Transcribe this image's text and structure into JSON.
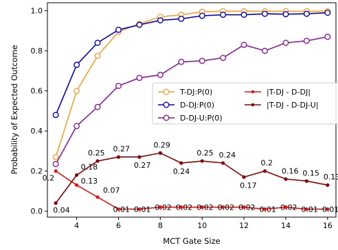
{
  "chart_data": {
    "type": "line",
    "title": "",
    "xlabel": "MCT Gate Size",
    "ylabel": "Probability of Expected Outcome",
    "xlim": [
      2.6,
      16.4
    ],
    "ylim": [
      -0.03,
      1.04
    ],
    "x_ticks": [
      4,
      6,
      8,
      10,
      12,
      14,
      16
    ],
    "x_tick_labels": [
      "4",
      "6",
      "8",
      "10",
      "12",
      "14",
      "16"
    ],
    "y_ticks": [
      0.0,
      0.2,
      0.4,
      0.6,
      0.8,
      1.0
    ],
    "y_tick_labels": [
      "0.0",
      "0.2",
      "0.4",
      "0.6",
      "0.8",
      "1.0"
    ],
    "grid": false,
    "legend_position": "center-right",
    "x": [
      3,
      4,
      5,
      6,
      7,
      8,
      9,
      10,
      11,
      12,
      13,
      14,
      15,
      16
    ],
    "series": [
      {
        "name": "T-DJ:P(0)",
        "color": "#ff9f2d",
        "marker": "open-circle",
        "values": [
          0.27,
          0.6,
          0.775,
          0.895,
          0.935,
          0.97,
          0.98,
          0.995,
          0.998,
          0.998,
          0.998,
          0.998,
          0.998,
          0.998
        ]
      },
      {
        "name": "D-DJ:P(0)",
        "color": "#0000cc",
        "marker": "open-circle",
        "values": [
          0.48,
          0.73,
          0.84,
          0.905,
          0.93,
          0.952,
          0.96,
          0.975,
          0.98,
          0.98,
          0.985,
          0.983,
          0.985,
          0.99
        ]
      },
      {
        "name": "D-DJ-U:P(0)",
        "color": "#8b1a9b",
        "marker": "open-circle",
        "values": [
          0.235,
          0.425,
          0.52,
          0.625,
          0.665,
          0.68,
          0.745,
          0.75,
          0.765,
          0.83,
          0.8,
          0.84,
          0.85,
          0.87
        ]
      },
      {
        "name": "|T-DJ - D-DJ|",
        "color": "#ee1111",
        "marker": "dot",
        "values": [
          0.2,
          0.13,
          0.07,
          0.01,
          0.01,
          0.02,
          0.02,
          0.02,
          0.02,
          0.02,
          0.01,
          0.02,
          0.01,
          0.01
        ],
        "labels": [
          "0.2",
          "0.13",
          "0.07",
          "0.01",
          "0.01",
          "0.02",
          "0.02",
          "0.02",
          "0.02",
          "0.02",
          "0.01",
          "0.02",
          "0.01",
          "0.01"
        ]
      },
      {
        "name": "|T-DJ - D-DJ-U|",
        "color": "#8b0000",
        "marker": "dot",
        "values": [
          0.04,
          0.18,
          0.25,
          0.27,
          0.27,
          0.29,
          0.24,
          0.25,
          0.24,
          0.17,
          0.2,
          0.16,
          0.15,
          0.13
        ],
        "labels": [
          "0.04",
          "0.18",
          "0.25",
          "0.27",
          "0.27",
          "0.29",
          "0.24",
          "0.25",
          "0.24",
          "0.17",
          "0.2",
          "0.16",
          "0.15",
          "0.13"
        ]
      }
    ]
  }
}
